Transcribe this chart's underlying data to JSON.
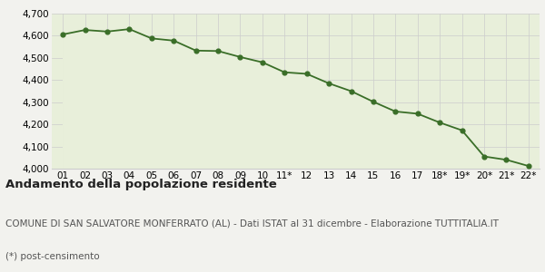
{
  "x_labels": [
    "01",
    "02",
    "03",
    "04",
    "05",
    "06",
    "07",
    "08",
    "09",
    "10",
    "11*",
    "12",
    "13",
    "14",
    "15",
    "16",
    "17",
    "18*",
    "19*",
    "20*",
    "21*",
    "22*"
  ],
  "values": [
    4606,
    4626,
    4619,
    4630,
    4588,
    4578,
    4533,
    4531,
    4504,
    4480,
    4435,
    4428,
    4385,
    4350,
    4302,
    4258,
    4248,
    4208,
    4173,
    4055,
    4040,
    4012
  ],
  "line_color": "#3a6e28",
  "fill_color": "#e8efda",
  "marker_color": "#3a6e28",
  "background_color": "#f2f2ee",
  "grid_color": "#cccccc",
  "ylim": [
    4000,
    4700
  ],
  "yticks": [
    4000,
    4100,
    4200,
    4300,
    4400,
    4500,
    4600,
    4700
  ],
  "title": "Andamento della popolazione residente",
  "subtitle": "COMUNE DI SAN SALVATORE MONFERRATO (AL) - Dati ISTAT al 31 dicembre - Elaborazione TUTTITALIA.IT",
  "footnote": "(*) post-censimento",
  "title_fontsize": 9.5,
  "subtitle_fontsize": 7.5,
  "footnote_fontsize": 7.5
}
